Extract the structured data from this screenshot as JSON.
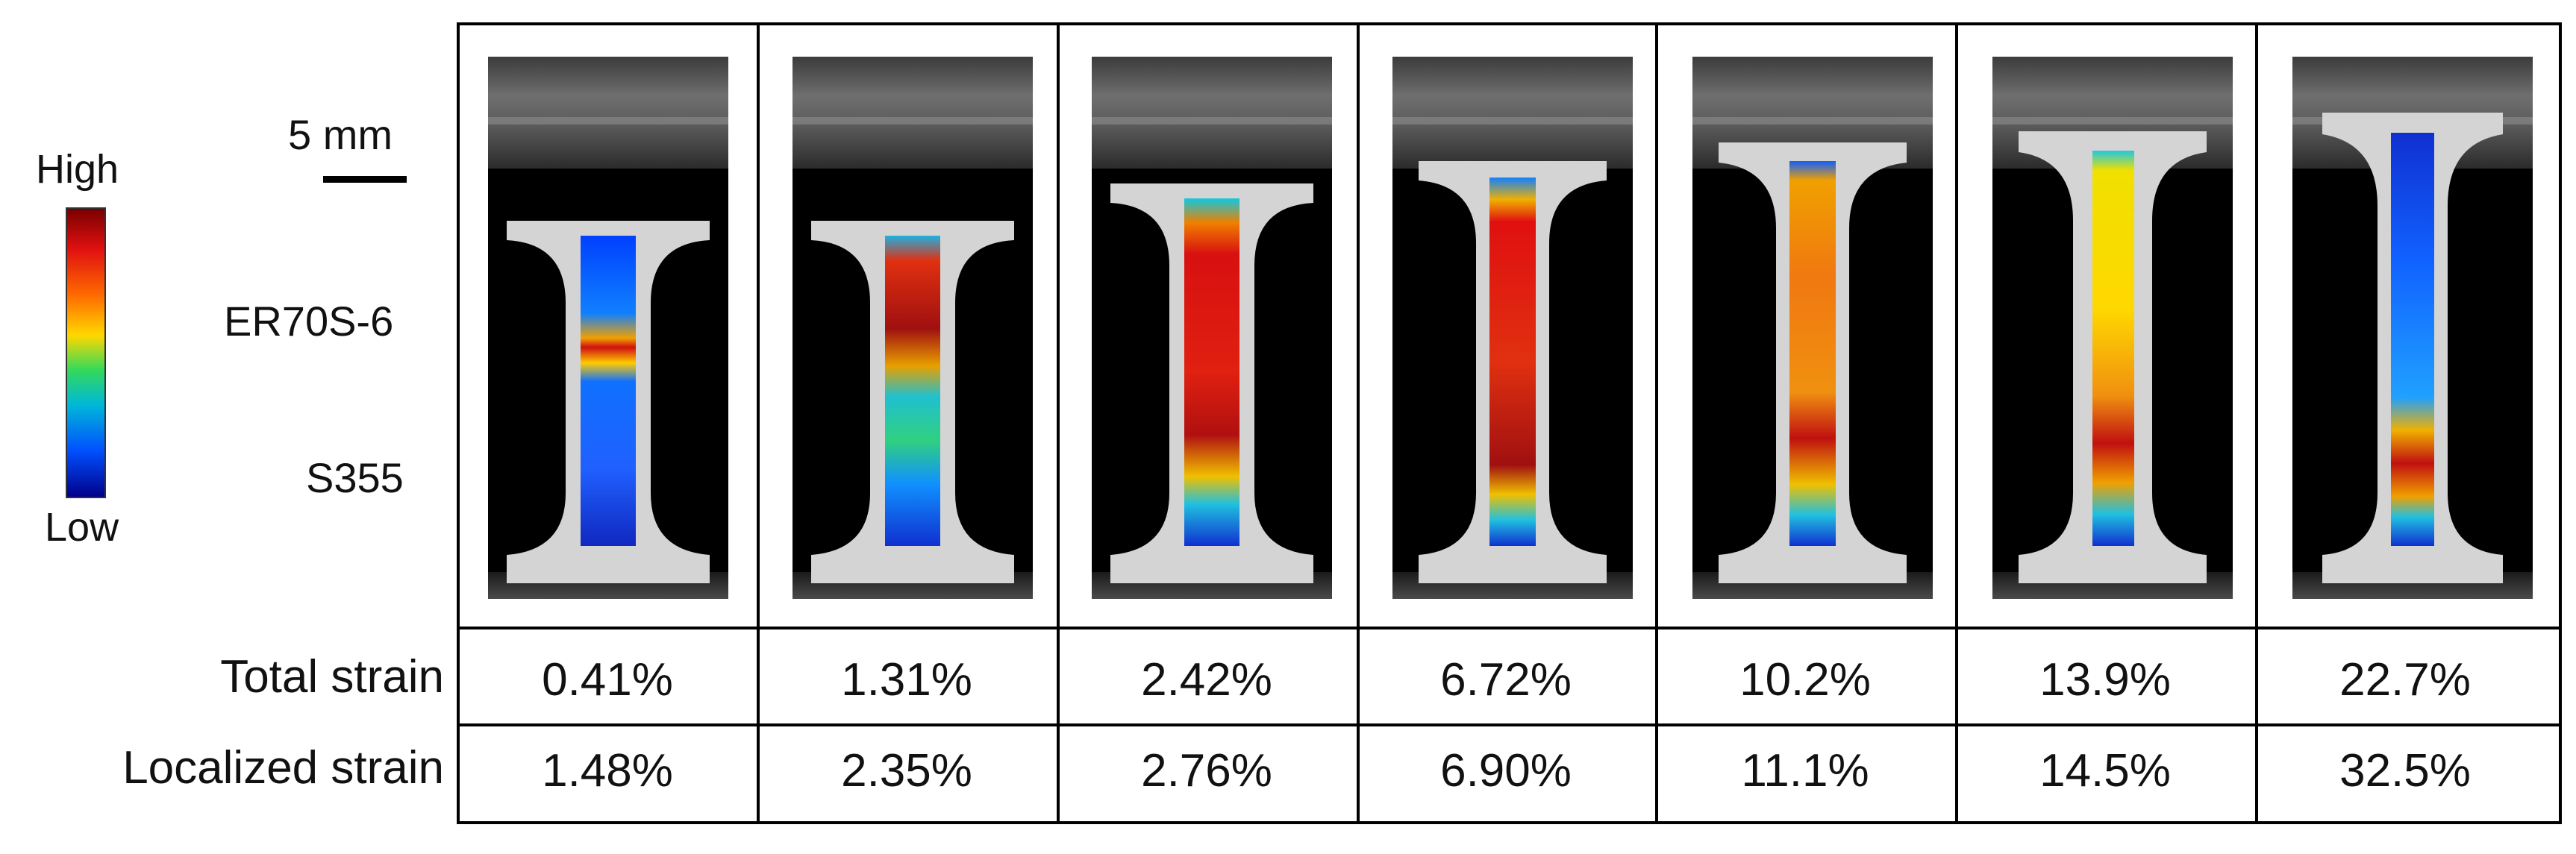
{
  "legend": {
    "high": "High",
    "low": "Low"
  },
  "scale": {
    "label": "5 mm"
  },
  "materials": {
    "top": "ER70S-6",
    "bottom": "S355"
  },
  "rows": {
    "total_label": "Total strain",
    "localized_label": "Localized strain"
  },
  "columns": [
    {
      "total": "0.41%",
      "localized": "1.48%"
    },
    {
      "total": "1.31%",
      "localized": "2.35%"
    },
    {
      "total": "2.42%",
      "localized": "2.76%"
    },
    {
      "total": "6.72%",
      "localized": "6.90%"
    },
    {
      "total": "10.2%",
      "localized": "11.1%"
    },
    {
      "total": "13.9%",
      "localized": "14.5%"
    },
    {
      "total": "22.7%",
      "localized": "32.5%"
    }
  ],
  "colors": {
    "high": "#7a0000",
    "low": "#00008a",
    "specimen": "#d8d8d8"
  }
}
